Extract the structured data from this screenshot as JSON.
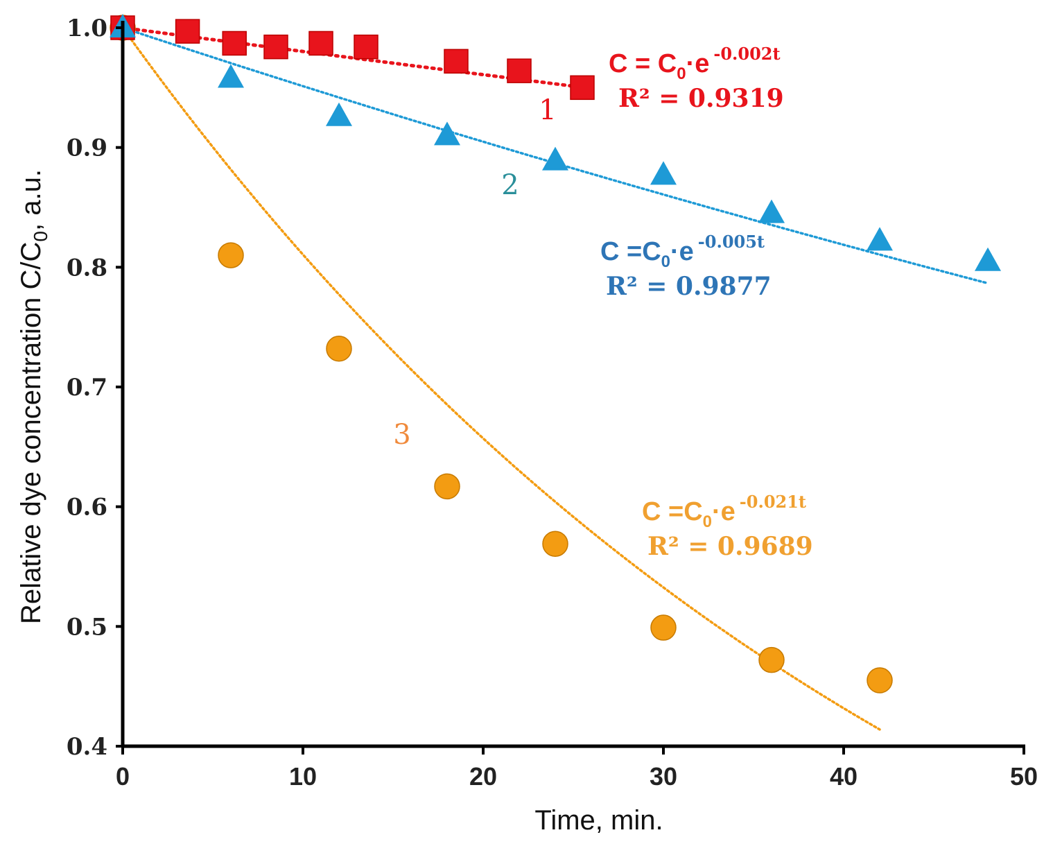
{
  "chart_data": {
    "type": "scatter",
    "title": "",
    "xlabel": "Time, min.",
    "ylabel": {
      "main": "Relative dye concentration C/C",
      "sub": "0",
      "tail": ", a.u."
    },
    "xlim": [
      0,
      50
    ],
    "ylim": [
      0.4,
      1.0
    ],
    "xticks": [
      0,
      10,
      20,
      30,
      40,
      50
    ],
    "xtick_labels": [
      "0",
      "10",
      "20",
      "30",
      "40",
      "50"
    ],
    "yticks": [
      0.4,
      0.5,
      0.6,
      0.7,
      0.8,
      0.9,
      1.0
    ],
    "ytick_labels": [
      "0.4",
      "0.5",
      "0.6",
      "0.7",
      "0.8",
      "0.9",
      "1.0"
    ],
    "grid": false,
    "series": [
      {
        "name": "1",
        "marker": "square",
        "color": "#e8141c",
        "label_color": "#e8141c",
        "x": [
          0,
          3.6,
          6.2,
          8.5,
          11.0,
          13.5,
          18.5,
          22.0,
          25.5
        ],
        "y": [
          1.0,
          0.997,
          0.987,
          0.984,
          0.987,
          0.984,
          0.972,
          0.964,
          0.95
        ],
        "fit": {
          "k": 0.002,
          "x_end": 25.5,
          "equation": {
            "prefix": "C = C",
            "sub": "0",
            "mid": "·e",
            "exponent": "-0.002t"
          },
          "r2": "R² = 0.9319"
        }
      },
      {
        "name": "2",
        "marker": "triangle",
        "color": "#1e9ad6",
        "label_color": "#2a8f9a",
        "eq_color": "#2e75b6",
        "x": [
          0,
          6,
          12,
          18,
          24,
          30,
          36,
          42,
          48
        ],
        "y": [
          1.0,
          0.958,
          0.926,
          0.91,
          0.889,
          0.877,
          0.845,
          0.822,
          0.805
        ],
        "fit": {
          "k": 0.005,
          "x_end": 48,
          "equation": {
            "prefix": "C =C",
            "sub": "0",
            "mid": "·e",
            "exponent": "-0.005t"
          },
          "r2": "R² = 0.9877"
        }
      },
      {
        "name": "3",
        "marker": "circle",
        "color": "#f39c12",
        "label_color": "#f08a3c",
        "eq_color": "#f0a030",
        "x": [
          0,
          6,
          12,
          18,
          24,
          30,
          36,
          42
        ],
        "y": [
          1.0,
          0.81,
          0.732,
          0.617,
          0.569,
          0.499,
          0.472,
          0.455
        ],
        "fit": {
          "k": 0.021,
          "x_end": 42,
          "equation": {
            "prefix": "C =C",
            "sub": "0",
            "mid": "·e",
            "exponent": "-0.021t"
          },
          "r2": "R² = 0.9689"
        }
      }
    ]
  }
}
